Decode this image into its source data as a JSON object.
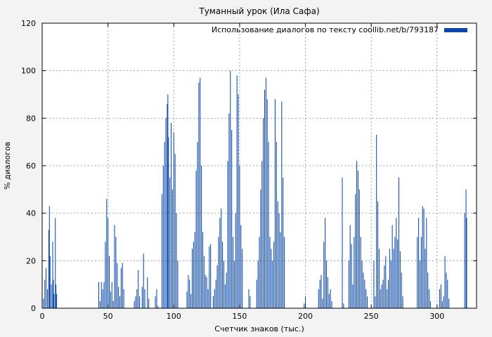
{
  "chart_data": {
    "type": "bar",
    "title": "Туманный урок (Ила Сафа)",
    "xlabel": "Счетчик знаков (тыс.)",
    "ylabel": "% диалогов",
    "xlim": [
      0,
      330
    ],
    "ylim": [
      0,
      120
    ],
    "x_ticks": [
      0,
      50,
      100,
      150,
      200,
      250,
      300
    ],
    "y_ticks": [
      0,
      20,
      40,
      60,
      80,
      100,
      120
    ],
    "grid": true,
    "legend_position": "top-right",
    "bar_color": "#0a47a8",
    "series": [
      {
        "name": "Использование диалогов по тексту coollib.net/b/793187",
        "points": [
          [
            1,
            4
          ],
          [
            2,
            12
          ],
          [
            3,
            17
          ],
          [
            4,
            8
          ],
          [
            5,
            33
          ],
          [
            5.5,
            43
          ],
          [
            6,
            22
          ],
          [
            7,
            10
          ],
          [
            8,
            28
          ],
          [
            8.5,
            12
          ],
          [
            9,
            6
          ],
          [
            10,
            38
          ],
          [
            10.5,
            10
          ],
          [
            11,
            6
          ],
          [
            43,
            11
          ],
          [
            44,
            3
          ],
          [
            45,
            11
          ],
          [
            46,
            8
          ],
          [
            47,
            11
          ],
          [
            48,
            28
          ],
          [
            49,
            46
          ],
          [
            50,
            38
          ],
          [
            51,
            22
          ],
          [
            52,
            7
          ],
          [
            53,
            11
          ],
          [
            54,
            3
          ],
          [
            55,
            35
          ],
          [
            56,
            30
          ],
          [
            57,
            19
          ],
          [
            58,
            9
          ],
          [
            59,
            5
          ],
          [
            60,
            17
          ],
          [
            61,
            19
          ],
          [
            62,
            8
          ],
          [
            70,
            3
          ],
          [
            71,
            5
          ],
          [
            72,
            8
          ],
          [
            73,
            16
          ],
          [
            74,
            5
          ],
          [
            76,
            9
          ],
          [
            77,
            23
          ],
          [
            78,
            8
          ],
          [
            80,
            13
          ],
          [
            81,
            4
          ],
          [
            86,
            5
          ],
          [
            87,
            8
          ],
          [
            88,
            1
          ],
          [
            91,
            48
          ],
          [
            92,
            60
          ],
          [
            93,
            70
          ],
          [
            94,
            80
          ],
          [
            95,
            86
          ],
          [
            95.5,
            90
          ],
          [
            96,
            72
          ],
          [
            97,
            55
          ],
          [
            98,
            78
          ],
          [
            99,
            50
          ],
          [
            100,
            74
          ],
          [
            101,
            65
          ],
          [
            102,
            40
          ],
          [
            103,
            20
          ],
          [
            110,
            7
          ],
          [
            111,
            14
          ],
          [
            112,
            12
          ],
          [
            113,
            6
          ],
          [
            114,
            25
          ],
          [
            115,
            28
          ],
          [
            116,
            32
          ],
          [
            117,
            58
          ],
          [
            118,
            70
          ],
          [
            119,
            95
          ],
          [
            120,
            97
          ],
          [
            121,
            60
          ],
          [
            122,
            32
          ],
          [
            123,
            22
          ],
          [
            124,
            14
          ],
          [
            125,
            13
          ],
          [
            126,
            8
          ],
          [
            127,
            26
          ],
          [
            128,
            27
          ],
          [
            130,
            5
          ],
          [
            131,
            8
          ],
          [
            132,
            12
          ],
          [
            133,
            18
          ],
          [
            134,
            30
          ],
          [
            135,
            38
          ],
          [
            136,
            42
          ],
          [
            137,
            28
          ],
          [
            138,
            20
          ],
          [
            139,
            10
          ],
          [
            140,
            15
          ],
          [
            141,
            62
          ],
          [
            142,
            82
          ],
          [
            143,
            100
          ],
          [
            144,
            75
          ],
          [
            145,
            30
          ],
          [
            146,
            20
          ],
          [
            147,
            40
          ],
          [
            148,
            98
          ],
          [
            149,
            90
          ],
          [
            150,
            60
          ],
          [
            151,
            35
          ],
          [
            152,
            25
          ],
          [
            157,
            8
          ],
          [
            158,
            5
          ],
          [
            163,
            12
          ],
          [
            164,
            20
          ],
          [
            165,
            30
          ],
          [
            166,
            50
          ],
          [
            167,
            62
          ],
          [
            168,
            80
          ],
          [
            169,
            92
          ],
          [
            170,
            97
          ],
          [
            171,
            88
          ],
          [
            172,
            70
          ],
          [
            173,
            30
          ],
          [
            174,
            25
          ],
          [
            175,
            20
          ],
          [
            176,
            28
          ],
          [
            177,
            88
          ],
          [
            178,
            70
          ],
          [
            179,
            45
          ],
          [
            180,
            40
          ],
          [
            181,
            32
          ],
          [
            182,
            87
          ],
          [
            183,
            55
          ],
          [
            184,
            30
          ],
          [
            199,
            2
          ],
          [
            200,
            5
          ],
          [
            210,
            8
          ],
          [
            211,
            12
          ],
          [
            212,
            14
          ],
          [
            213,
            4
          ],
          [
            214,
            28
          ],
          [
            215,
            38
          ],
          [
            216,
            20
          ],
          [
            217,
            13
          ],
          [
            218,
            6
          ],
          [
            219,
            8
          ],
          [
            220,
            3
          ],
          [
            228,
            55
          ],
          [
            229,
            2
          ],
          [
            233,
            20
          ],
          [
            234,
            35
          ],
          [
            235,
            27
          ],
          [
            236,
            10
          ],
          [
            237,
            30
          ],
          [
            238,
            48
          ],
          [
            239,
            62
          ],
          [
            240,
            58
          ],
          [
            241,
            50
          ],
          [
            242,
            30
          ],
          [
            243,
            20
          ],
          [
            244,
            15
          ],
          [
            245,
            12
          ],
          [
            246,
            8
          ],
          [
            247,
            5
          ],
          [
            252,
            20
          ],
          [
            253,
            5
          ],
          [
            254,
            73
          ],
          [
            255,
            45
          ],
          [
            256,
            25
          ],
          [
            257,
            8
          ],
          [
            258,
            10
          ],
          [
            259,
            12
          ],
          [
            260,
            18
          ],
          [
            261,
            22
          ],
          [
            262,
            8
          ],
          [
            263,
            12
          ],
          [
            264,
            25
          ],
          [
            265,
            20
          ],
          [
            266,
            35
          ],
          [
            267,
            25
          ],
          [
            268,
            30
          ],
          [
            269,
            38
          ],
          [
            270,
            29
          ],
          [
            271,
            55
          ],
          [
            272,
            24
          ],
          [
            273,
            15
          ],
          [
            274,
            5
          ],
          [
            285,
            30
          ],
          [
            286,
            38
          ],
          [
            287,
            20
          ],
          [
            288,
            30
          ],
          [
            289,
            43
          ],
          [
            290,
            42
          ],
          [
            291,
            25
          ],
          [
            292,
            38
          ],
          [
            293,
            15
          ],
          [
            294,
            8
          ],
          [
            295,
            3
          ],
          [
            302,
            8
          ],
          [
            303,
            10
          ],
          [
            304,
            3
          ],
          [
            305,
            5
          ],
          [
            306,
            22
          ],
          [
            307,
            15
          ],
          [
            308,
            12
          ],
          [
            309,
            4
          ],
          [
            321,
            40
          ],
          [
            322,
            50
          ],
          [
            322.5,
            38
          ]
        ]
      }
    ]
  }
}
